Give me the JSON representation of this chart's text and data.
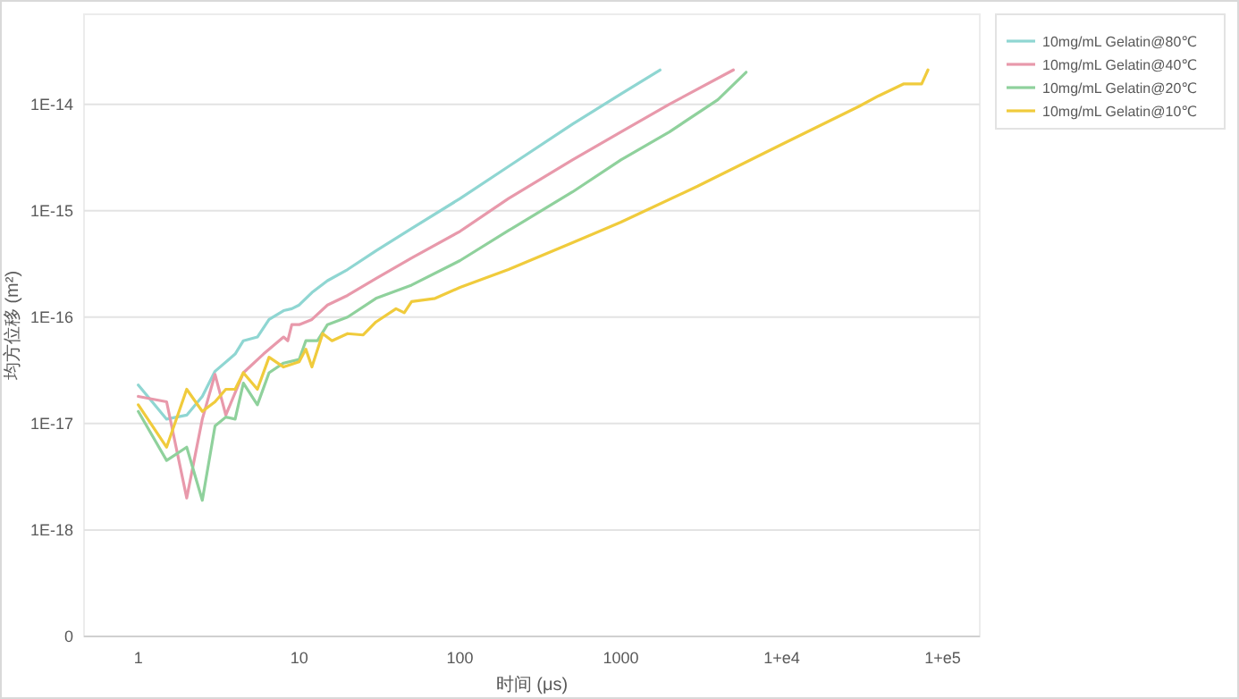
{
  "chart_data": {
    "type": "line",
    "xlabel": "时间 (μs)",
    "ylabel": "均方位移 (m²)",
    "log": "xy",
    "grid": "y",
    "legend": "top right",
    "marker": "none",
    "line_style": "solid",
    "xlim": [
      0.46,
      170000
    ],
    "xticks": [
      1,
      10,
      100,
      1000,
      {
        "value": 10000,
        "label": "1+e4"
      },
      {
        "value": 100000,
        "label": "1+e5"
      }
    ],
    "ylim": [
      1e-19,
      7e-14
    ],
    "yticks": [
      {
        "value": 1e-19,
        "label": "0"
      },
      {
        "value": 1e-18,
        "label": "1E-18"
      },
      {
        "value": 1e-17,
        "label": "1E-17"
      },
      {
        "value": 1e-16,
        "label": "1E-16"
      },
      {
        "value": 1e-15,
        "label": "1E-15"
      },
      {
        "value": 1e-14,
        "label": "1E-14"
      }
    ],
    "series": [
      {
        "name": "10mg/mL Gelatin@80℃",
        "color": "#8fd6d2",
        "x": [
          1,
          1.5,
          2,
          2.5,
          3,
          4,
          4.5,
          5.5,
          6.5,
          8,
          9,
          10,
          12,
          15,
          20,
          30,
          50,
          100,
          200,
          500,
          1000,
          1750
        ],
        "values": [
          2.3e-17,
          1.1e-17,
          1.2e-17,
          1.8e-17,
          3.1e-17,
          4.5e-17,
          6e-17,
          6.5e-17,
          9.5e-17,
          1.15e-16,
          1.2e-16,
          1.3e-16,
          1.7e-16,
          2.2e-16,
          2.8e-16,
          4.2e-16,
          6.8e-16,
          1.3e-15,
          2.6e-15,
          6.5e-15,
          1.25e-14,
          2.1e-14
        ]
      },
      {
        "name": "10mg/mL Gelatin@40℃",
        "color": "#e899ab",
        "x": [
          1,
          1.5,
          2,
          2.5,
          3,
          3.5,
          4.5,
          6,
          8,
          8.5,
          9,
          10,
          12,
          15,
          20,
          30,
          50,
          100,
          200,
          500,
          1000,
          2000,
          5000
        ],
        "values": [
          1.8e-17,
          1.6e-17,
          2e-18,
          1.1e-17,
          2.9e-17,
          1.2e-17,
          3e-17,
          4.5e-17,
          6.5e-17,
          6e-17,
          8.5e-17,
          8.5e-17,
          9.5e-17,
          1.3e-16,
          1.6e-16,
          2.3e-16,
          3.6e-16,
          6.4e-16,
          1.3e-15,
          3e-15,
          5.5e-15,
          1e-14,
          2.1e-14
        ]
      },
      {
        "name": "10mg/mL Gelatin@20℃",
        "color": "#8fd19c",
        "x": [
          1,
          1.5,
          2,
          2.5,
          3,
          3.5,
          4,
          4.5,
          5.5,
          6.5,
          8,
          10,
          11,
          13,
          15,
          20,
          30,
          50,
          100,
          200,
          500,
          1000,
          2000,
          4000,
          6000
        ],
        "values": [
          1.3e-17,
          4.5e-18,
          6e-18,
          1.9e-18,
          9.5e-18,
          1.15e-17,
          1.1e-17,
          2.4e-17,
          1.5e-17,
          3e-17,
          3.7e-17,
          4e-17,
          6e-17,
          6e-17,
          8.5e-17,
          1e-16,
          1.5e-16,
          2e-16,
          3.4e-16,
          6.5e-16,
          1.5e-15,
          3e-15,
          5.5e-15,
          1.1e-14,
          2e-14
        ]
      },
      {
        "name": "10mg/mL Gelatin@10℃",
        "color": "#f0cb3c",
        "x": [
          1,
          1.5,
          2,
          2.5,
          3,
          3.5,
          4,
          4.5,
          5.5,
          6.5,
          8,
          10,
          11,
          12,
          14,
          16,
          20,
          25,
          30,
          40,
          45,
          50,
          70,
          100,
          200,
          500,
          1000,
          3000,
          10000,
          30000,
          40000,
          57000,
          74000,
          81000
        ],
        "values": [
          1.5e-17,
          6e-18,
          2.1e-17,
          1.3e-17,
          1.6e-17,
          2.1e-17,
          2.1e-17,
          3e-17,
          2.1e-17,
          4.2e-17,
          3.4e-17,
          3.8e-17,
          5e-17,
          3.4e-17,
          7e-17,
          6e-17,
          7e-17,
          6.8e-17,
          9e-17,
          1.2e-16,
          1.1e-16,
          1.4e-16,
          1.5e-16,
          1.9e-16,
          2.8e-16,
          5e-16,
          7.8e-16,
          1.7e-15,
          4.2e-15,
          9.5e-15,
          1.2e-14,
          1.55e-14,
          1.55e-14,
          2.1e-14
        ]
      }
    ]
  }
}
